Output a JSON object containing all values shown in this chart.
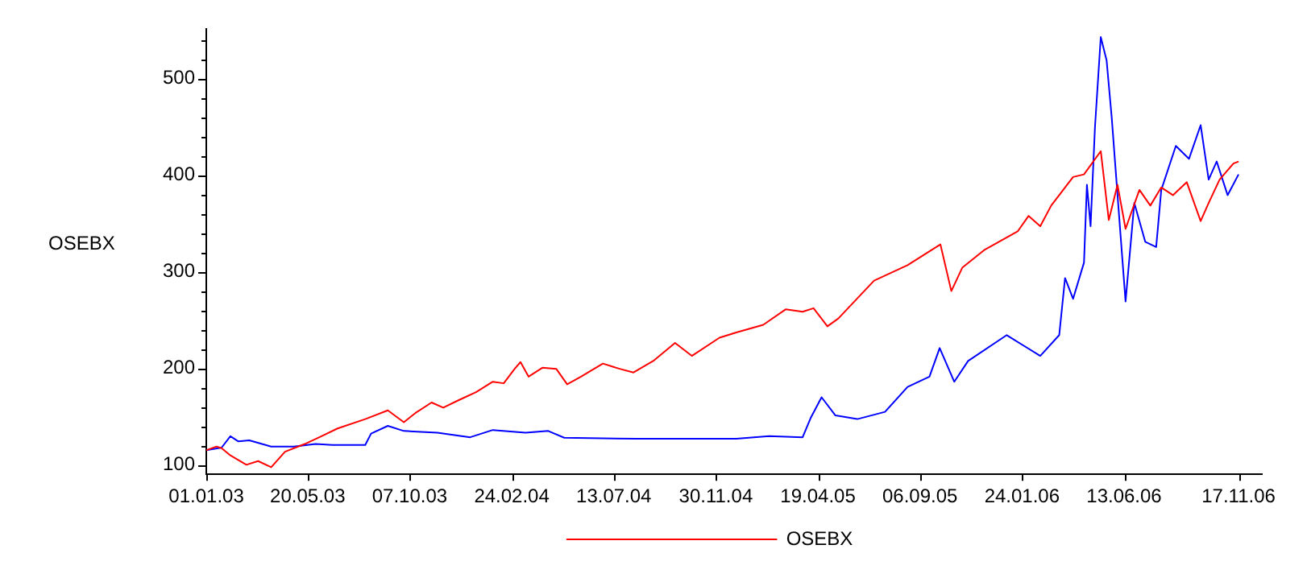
{
  "chart_data": {
    "type": "line",
    "ylabel": "OSEBX",
    "legend": "bottom",
    "xlim": [
      "2003-01-01",
      "2006-12-19"
    ],
    "xticks": [
      {
        "value": "2003-01-01",
        "label": "01.01.03"
      },
      {
        "value": "2003-05-20",
        "label": "20.05.03"
      },
      {
        "value": "2003-10-07",
        "label": "07.10.03"
      },
      {
        "value": "2004-02-24",
        "label": "24.02.04"
      },
      {
        "value": "2004-07-13",
        "label": "13.07.04"
      },
      {
        "value": "2004-11-30",
        "label": "30.11.04"
      },
      {
        "value": "2005-04-19",
        "label": "19.04.05"
      },
      {
        "value": "2005-09-06",
        "label": "06.09.05"
      },
      {
        "value": "2006-01-24",
        "label": "24.01.06"
      },
      {
        "value": "2006-06-13",
        "label": "13.06.06"
      },
      {
        "value": "2006-11-17",
        "label": "17.11.06"
      }
    ],
    "ylim": [
      90,
      551
    ],
    "yticks": [
      100,
      {
        "value": 120,
        "label": null
      },
      {
        "value": 140,
        "label": null
      },
      {
        "value": 160,
        "label": null
      },
      {
        "value": 180,
        "label": null
      },
      200,
      {
        "value": 220,
        "label": null
      },
      {
        "value": 240,
        "label": null
      },
      {
        "value": 260,
        "label": null
      },
      {
        "value": 280,
        "label": null
      },
      300,
      {
        "value": 320,
        "label": null
      },
      {
        "value": 340,
        "label": null
      },
      {
        "value": 360,
        "label": null
      },
      {
        "value": 380,
        "label": null
      },
      400,
      {
        "value": 420,
        "label": null
      },
      {
        "value": 440,
        "label": null
      },
      {
        "value": 460,
        "label": null
      },
      {
        "value": 480,
        "label": null
      },
      500,
      {
        "value": 520,
        "label": null
      },
      {
        "value": 540,
        "label": null
      }
    ],
    "series": [
      {
        "name": "OSEBX",
        "color": "#ff0000",
        "x": [
          "2003-01-01",
          "2003-01-15",
          "2003-01-22",
          "2003-02-03",
          "2003-02-25",
          "2003-03-13",
          "2003-03-31",
          "2003-04-19",
          "2003-05-16",
          "2003-06-08",
          "2003-06-30",
          "2003-08-07",
          "2003-09-07",
          "2003-09-29",
          "2003-10-15",
          "2003-11-06",
          "2003-11-22",
          "2003-12-14",
          "2004-01-06",
          "2004-01-29",
          "2004-02-13",
          "2004-02-28",
          "2004-03-07",
          "2004-03-18",
          "2004-04-06",
          "2004-04-25",
          "2004-05-10",
          "2004-05-29",
          "2004-06-28",
          "2004-07-21",
          "2004-08-09",
          "2004-09-05",
          "2004-10-05",
          "2004-10-28",
          "2004-12-05",
          "2004-12-28",
          "2005-02-03",
          "2005-03-06",
          "2005-03-29",
          "2005-04-13",
          "2005-05-02",
          "2005-05-17",
          "2005-07-05",
          "2005-08-20",
          "2005-10-04",
          "2005-10-19",
          "2005-11-03",
          "2005-12-04",
          "2006-01-18",
          "2006-02-02",
          "2006-02-18",
          "2006-03-05",
          "2006-04-04",
          "2006-04-19",
          "2006-05-12",
          "2006-05-23",
          "2006-06-04",
          "2006-06-15",
          "2006-07-04",
          "2006-07-19",
          "2006-08-03",
          "2006-08-19",
          "2006-09-07",
          "2006-09-26",
          "2006-10-07",
          "2006-10-22",
          "2006-11-10",
          "2006-11-17"
        ],
        "values": [
          115,
          118.8,
          117.1,
          109.6,
          99.9,
          103.7,
          97.3,
          113.4,
          121.4,
          129.5,
          137.5,
          147.2,
          156.3,
          144,
          153.6,
          164.4,
          159,
          167.1,
          175.1,
          185.9,
          184.3,
          199.3,
          206.3,
          191.2,
          200.4,
          199.3,
          183.2,
          191.2,
          204.7,
          199.3,
          195.5,
          207.4,
          226.1,
          212.7,
          231.5,
          236.9,
          244.9,
          261,
          258.4,
          262.1,
          243.3,
          251.4,
          290.6,
          306.7,
          328.2,
          279.8,
          304,
          322.8,
          341.6,
          357.7,
          347,
          368.4,
          398,
          400.7,
          424.8,
          353.4,
          389.9,
          344.3,
          384.6,
          368.4,
          387.2,
          379.2,
          392.6,
          352.3,
          371.1,
          395.3,
          412,
          414.1
        ]
      },
      {
        "color": "#0000ff",
        "x": [
          "2003-01-01",
          "2003-01-22",
          "2003-02-03",
          "2003-02-14",
          "2003-03-01",
          "2003-03-31",
          "2003-05-01",
          "2003-05-31",
          "2003-06-23",
          "2003-08-07",
          "2003-08-15",
          "2003-09-07",
          "2003-09-29",
          "2003-11-14",
          "2003-12-29",
          "2004-01-29",
          "2004-03-14",
          "2004-04-14",
          "2004-05-06",
          "2004-08-13",
          "2004-12-28",
          "2005-02-11",
          "2005-03-29",
          "2005-04-09",
          "2005-04-24",
          "2005-05-13",
          "2005-06-12",
          "2005-07-20",
          "2005-08-20",
          "2005-09-19",
          "2005-10-03",
          "2005-10-23",
          "2005-11-11",
          "2006-01-03",
          "2006-02-18",
          "2006-03-16",
          "2006-03-24",
          "2006-04-04",
          "2006-04-19",
          "2006-04-23",
          "2006-04-28",
          "2006-05-04",
          "2006-05-12",
          "2006-05-20",
          "2006-05-27",
          "2006-06-04",
          "2006-06-15",
          "2006-06-27",
          "2006-07-12",
          "2006-07-27",
          "2006-08-03",
          "2006-08-23",
          "2006-09-10",
          "2006-09-26",
          "2006-10-07",
          "2006-10-18",
          "2006-11-02",
          "2006-11-17"
        ],
        "values": [
          115,
          117.7,
          129.5,
          124.1,
          125.2,
          118.7,
          118.7,
          121.4,
          120.4,
          120.4,
          132.2,
          140.2,
          134.9,
          133.2,
          128.4,
          135.9,
          133.2,
          134.9,
          127.9,
          126.8,
          126.8,
          129.5,
          128.4,
          148.3,
          169.8,
          151,
          147.2,
          154.7,
          180.5,
          191.2,
          220.8,
          185.9,
          207.4,
          234.2,
          212.7,
          234.2,
          293.3,
          271.8,
          309.4,
          389.9,
          347,
          449,
          543,
          518.8,
          459.7,
          379.2,
          269.1,
          371.1,
          330.9,
          325.5,
          384.6,
          430.2,
          416.8,
          451.7,
          395.3,
          414.1,
          379.2,
          400.7
        ]
      }
    ]
  }
}
